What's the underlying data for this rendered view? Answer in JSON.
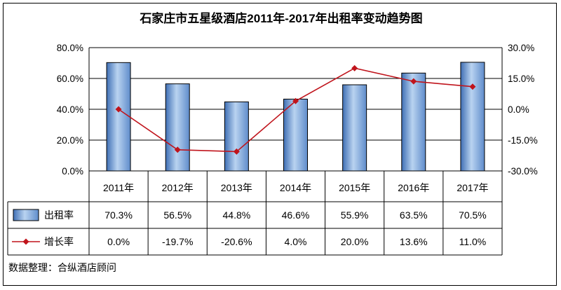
{
  "chart_data": {
    "type": "bar",
    "title": "石家庄市五星级酒店2011年-2017年出租率变动趋势图",
    "categories": [
      "2011年",
      "2012年",
      "2013年",
      "2014年",
      "2015年",
      "2016年",
      "2017年"
    ],
    "series": [
      {
        "name": "出租率",
        "type": "bar",
        "axis": "left",
        "values": [
          70.3,
          56.5,
          44.8,
          46.6,
          55.9,
          63.5,
          70.5
        ],
        "labels": [
          "70.3%",
          "56.5%",
          "44.8%",
          "46.6%",
          "55.9%",
          "63.5%",
          "70.5%"
        ],
        "color": "#7FA6D6"
      },
      {
        "name": "增长率",
        "type": "line",
        "axis": "right",
        "values": [
          0.0,
          -19.7,
          -20.6,
          4.0,
          20.0,
          13.6,
          11.0
        ],
        "labels": [
          "0.0%",
          "-19.7%",
          "-20.6%",
          "4.0%",
          "20.0%",
          "13.6%",
          "11.0%"
        ],
        "color": "#C0141C"
      }
    ],
    "left_axis": {
      "ylim": [
        0,
        80
      ],
      "ticks": [
        "0.0%",
        "20.0%",
        "40.0%",
        "60.0%",
        "80.0%"
      ]
    },
    "right_axis": {
      "ylim": [
        -30,
        30
      ],
      "ticks": [
        "-30.0%",
        "-15.0%",
        "0.0%",
        "15.0%",
        "30.0%"
      ]
    },
    "grid": true,
    "legend": "data-table"
  },
  "source": "数据整理：合纵酒店顾问"
}
